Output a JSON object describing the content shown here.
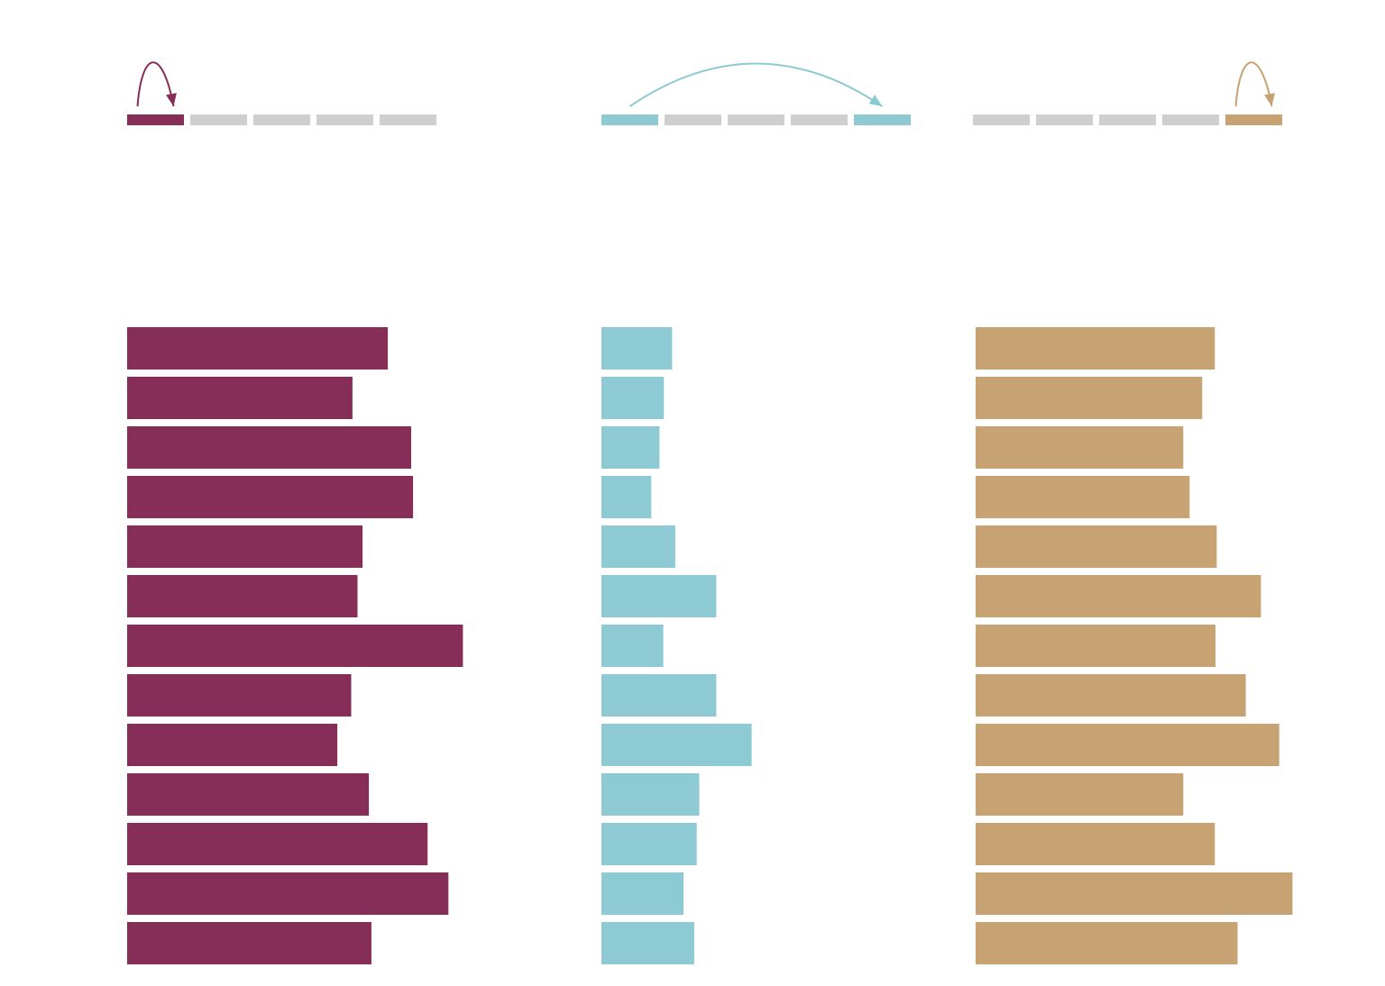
{
  "chart_data": [
    {
      "type": "bar",
      "orientation": "horizontal",
      "panel": "left",
      "indicator": {
        "segments": 5,
        "highlighted": [
          0
        ],
        "arc_from": 0,
        "arc_to": 0
      },
      "values": [
        4.13,
        3.57,
        4.5,
        4.53,
        3.73,
        3.65,
        5.32,
        3.55,
        3.33,
        3.83,
        4.76,
        5.09,
        3.87
      ],
      "xlim": [
        0,
        7
      ],
      "color": "#862D58"
    },
    {
      "type": "bar",
      "orientation": "horizontal",
      "panel": "middle",
      "indicator": {
        "segments": 5,
        "highlighted": [
          0,
          4
        ],
        "arc_from": 0,
        "arc_to": 4
      },
      "values": [
        1.12,
        0.99,
        0.92,
        0.79,
        1.17,
        1.82,
        0.98,
        1.82,
        2.38,
        1.55,
        1.51,
        1.3,
        1.47
      ],
      "xlim": [
        0,
        7
      ],
      "color": "#8DCAD3"
    },
    {
      "type": "bar",
      "orientation": "horizontal",
      "panel": "right",
      "indicator": {
        "segments": 5,
        "highlighted": [
          4
        ],
        "arc_from": 4,
        "arc_to": 4
      },
      "values": [
        3.79,
        3.59,
        3.29,
        3.39,
        3.82,
        4.52,
        3.8,
        4.28,
        4.81,
        3.29,
        3.79,
        5.02,
        4.15
      ],
      "xlim": [
        0,
        7
      ],
      "color": "#C7A273"
    }
  ],
  "colors": {
    "inactive_segment": "#CFCFCF",
    "background": "#FFFFFF"
  }
}
